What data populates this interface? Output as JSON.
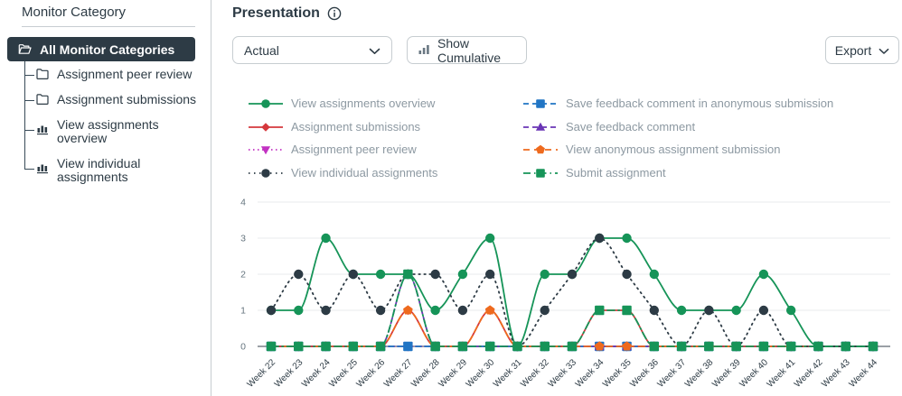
{
  "sidebar": {
    "title": "Monitor Category",
    "selected": {
      "label": "All Monitor Categories"
    },
    "items": [
      {
        "label": "Assignment peer review",
        "icon": "folder"
      },
      {
        "label": "Assignment submissions",
        "icon": "folder"
      },
      {
        "label": "View assignments overview",
        "icon": "bar-chart"
      },
      {
        "label": "View individual assignments",
        "icon": "bar-chart"
      }
    ]
  },
  "header": {
    "title": "Presentation"
  },
  "toolbar": {
    "presentation_select_value": "Actual",
    "show_cumulative_label": "Show Cumulative",
    "export_label": "Export"
  },
  "colors": {
    "accent_dark": "#2D3B45",
    "border": "#C7CDD1",
    "legend_text": "#8D99A2",
    "axis_tick_text": "#66757F"
  },
  "chart_data": {
    "type": "line",
    "title": "",
    "xlabel": "",
    "ylabel": "",
    "ylim": [
      0,
      4
    ],
    "yticks": [
      0,
      1,
      2,
      3,
      4
    ],
    "grid": true,
    "legend_position": "top",
    "grid_color": "#E9EBEC",
    "zero_axis_color": "#9AA0A6",
    "x_label_color": "#2D3B45",
    "y_label_color": "#66757F",
    "x_categories": [
      "Week 22",
      "Week 23",
      "Week 24",
      "Week 25",
      "Week 26",
      "Week 27",
      "Week 28",
      "Week 29",
      "Week 30",
      "Week 31",
      "Week 32",
      "Week 33",
      "Week 34",
      "Week 35",
      "Week 36",
      "Week 37",
      "Week 38",
      "Week 39",
      "Week 40",
      "Week 41",
      "Week 42",
      "Week 43",
      "Week 44"
    ],
    "series": [
      {
        "name": "View assignments overview",
        "color": "#169458",
        "marker": "circle",
        "dash": "",
        "values": [
          1,
          1,
          3,
          2,
          2,
          2,
          1,
          2,
          3,
          0,
          2,
          2,
          3,
          3,
          2,
          1,
          1,
          1,
          2,
          1,
          0,
          0,
          0
        ]
      },
      {
        "name": "Assignment submissions",
        "color": "#D5383D",
        "marker": "diamond",
        "dash": "",
        "values": [
          0,
          0,
          0,
          0,
          0,
          1,
          0,
          0,
          1,
          0,
          0,
          0,
          1,
          1,
          0,
          0,
          0,
          0,
          0,
          0,
          0,
          0,
          0
        ]
      },
      {
        "name": "Assignment peer review",
        "color": "#C232C2",
        "marker": "triangle-down",
        "dash": "1.5 3.5",
        "values": [
          0,
          0,
          0,
          0,
          0,
          0,
          0,
          0,
          0,
          0,
          0,
          0,
          0,
          0,
          0,
          0,
          0,
          0,
          0,
          0,
          0,
          0,
          0
        ]
      },
      {
        "name": "View individual assignments",
        "color": "#2D3B45",
        "marker": "circle",
        "dash": "1.5 4.5",
        "values": [
          1,
          2,
          1,
          2,
          1,
          2,
          2,
          1,
          2,
          0,
          1,
          2,
          3,
          2,
          1,
          0,
          1,
          0,
          1,
          0,
          0,
          0,
          0
        ]
      },
      {
        "name": "Save feedback comment in anonymous submission",
        "color": "#2175C4",
        "marker": "square",
        "dash": "6 4",
        "values": [
          0,
          0,
          0,
          0,
          0,
          0,
          0,
          0,
          0,
          0,
          0,
          0,
          0,
          0,
          0,
          0,
          0,
          0,
          0,
          0,
          0,
          0,
          0
        ]
      },
      {
        "name": "Save feedback comment",
        "color": "#6A35B5",
        "marker": "triangle-up",
        "dash": "6 4",
        "values": [
          0,
          0,
          0,
          0,
          0,
          2,
          0,
          0,
          0,
          0,
          0,
          0,
          0,
          0,
          0,
          0,
          0,
          0,
          0,
          0,
          0,
          0,
          0
        ]
      },
      {
        "name": "View anonymous assignment submission",
        "color": "#EE6A1E",
        "marker": "pentagon",
        "dash": "7 5",
        "values": [
          0,
          0,
          0,
          0,
          0,
          1,
          0,
          0,
          1,
          0,
          0,
          0,
          0,
          0,
          0,
          0,
          0,
          0,
          0,
          0,
          0,
          0,
          0
        ]
      },
      {
        "name": "Submit assignment",
        "color": "#169458",
        "marker": "square",
        "dash": "8 4 1.5 4",
        "values": [
          0,
          0,
          0,
          0,
          0,
          2,
          0,
          0,
          0,
          0,
          0,
          0,
          1,
          1,
          0,
          0,
          0,
          0,
          0,
          0,
          0,
          0,
          0
        ]
      }
    ],
    "draw_order": [
      2,
      4,
      5,
      1,
      6,
      0,
      3,
      7
    ]
  }
}
